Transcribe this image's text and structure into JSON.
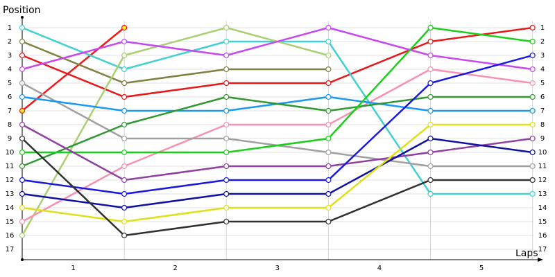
{
  "chart_data": {
    "type": "line",
    "y_label": "Position",
    "x_label": "Laps",
    "categories": [
      "1",
      "2",
      "3",
      "4",
      "5"
    ],
    "x": [
      0,
      1,
      2,
      3,
      4,
      5
    ],
    "xlim": [
      0,
      5.05
    ],
    "ylim": [
      17.75,
      0.25
    ],
    "yticks": [
      1,
      2,
      3,
      4,
      5,
      6,
      7,
      8,
      9,
      10,
      11,
      12,
      13,
      14,
      15,
      16,
      17
    ],
    "grid": true,
    "series": [
      {
        "color": "#e81818",
        "values": [
          3,
          6,
          5,
          5,
          2,
          1
        ]
      },
      {
        "color": "#f01818",
        "marker_fill": "#ffee30",
        "values": [
          7,
          1,
          null,
          null,
          null,
          null
        ]
      },
      {
        "color": "#40d0d0",
        "values": [
          1,
          4,
          2,
          2,
          13,
          13
        ]
      },
      {
        "color": "#808040",
        "values": [
          2,
          5,
          4,
          4,
          null,
          null
        ]
      },
      {
        "color": "#a8d070",
        "values": [
          16,
          3,
          1,
          3,
          null,
          null
        ]
      },
      {
        "color": "#c848f0",
        "values": [
          4,
          2,
          3,
          1,
          3,
          4
        ]
      },
      {
        "color": "#f890b0",
        "values": [
          15,
          11,
          8,
          8,
          4,
          5
        ]
      },
      {
        "color": "#a0a0a0",
        "values": [
          5,
          9,
          9,
          10,
          11,
          11
        ]
      },
      {
        "color": "#1898f0",
        "values": [
          6,
          7,
          7,
          6,
          7,
          7
        ]
      },
      {
        "color": "#309830",
        "values": [
          11,
          8,
          6,
          7,
          6,
          6
        ]
      },
      {
        "color": "#18d018",
        "values": [
          10,
          10,
          10,
          9,
          1,
          2
        ]
      },
      {
        "color": "#9040a0",
        "values": [
          8,
          12,
          11,
          11,
          10,
          9
        ]
      },
      {
        "color": "#1818e0",
        "values": [
          12,
          13,
          12,
          12,
          5,
          3
        ]
      },
      {
        "color": "#1010a0",
        "values": [
          13,
          14,
          13,
          13,
          9,
          10
        ]
      },
      {
        "color": "#e0e018",
        "values": [
          14,
          15,
          14,
          14,
          8,
          8
        ]
      },
      {
        "color": "#303030",
        "values": [
          9,
          16,
          15,
          15,
          12,
          12
        ]
      }
    ]
  }
}
